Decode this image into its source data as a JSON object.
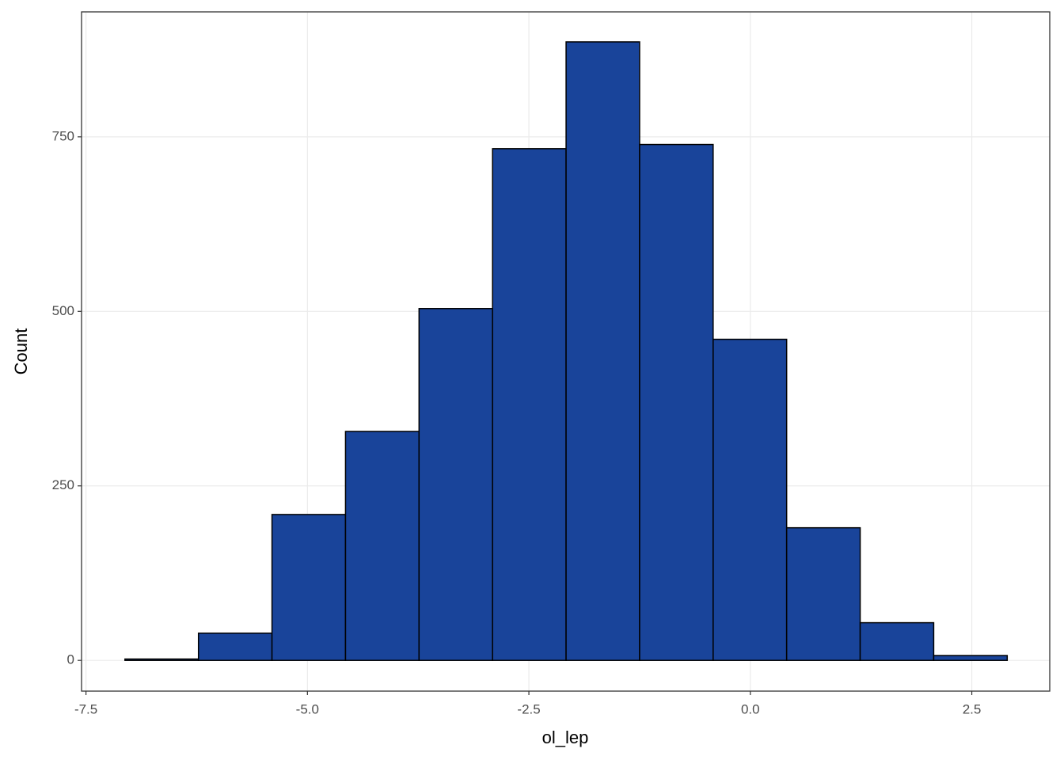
{
  "chart_data": {
    "type": "histogram",
    "x_label": "ol_lep",
    "y_label": "Count",
    "bins": [
      -7.06,
      -6.23,
      -5.4,
      -4.57,
      -3.74,
      -2.91,
      -2.08,
      -1.25,
      -0.42,
      0.41,
      1.24,
      2.07,
      2.9
    ],
    "values": [
      2,
      39,
      209,
      328,
      504,
      733,
      886,
      739,
      460,
      190,
      54,
      7
    ],
    "color": "#19449a",
    "edge_color": "#000000",
    "xlim": [
      -7.55,
      3.38
    ],
    "ylim": [
      -44,
      929
    ],
    "xticks": [
      {
        "value": -7.5,
        "label": "-7.5"
      },
      {
        "value": -5,
        "label": "-5.0"
      },
      {
        "value": -2.5,
        "label": "-2.5"
      },
      {
        "value": 0,
        "label": "0.0"
      },
      {
        "value": 2.5,
        "label": "2.5"
      }
    ],
    "yticks": [
      0,
      250,
      500,
      750
    ],
    "grid": true
  }
}
